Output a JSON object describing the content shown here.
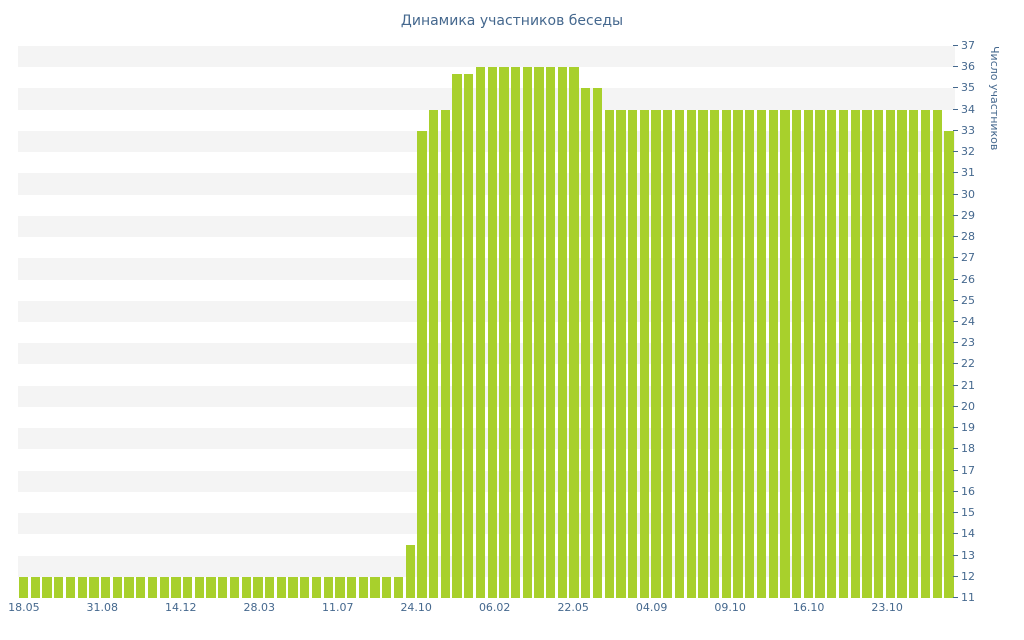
{
  "page": {
    "title": "Динамика участников беседы"
  },
  "chart_data": {
    "type": "bar",
    "title": "Динамика участников беседы",
    "xlabel": "",
    "ylabel": "Число участников",
    "ylim": [
      11,
      37
    ],
    "y_tick_step": 1,
    "grid": "horizontal-stripes",
    "legend": "none",
    "bar_color": "#a8d02c",
    "stripe_color": "#f4f4f4",
    "axis_text_color": "#45688e",
    "x_tick_labels": [
      "18.05",
      "31.08",
      "14.12",
      "28.03",
      "11.07",
      "24.10",
      "06.02",
      "22.05",
      "04.09",
      "09.10",
      "16.10",
      "23.10"
    ],
    "x_tick_bar_index": [
      0,
      6.7,
      13.4,
      20.1,
      26.8,
      33.5,
      40.2,
      46.9,
      53.6,
      60.3,
      67.0,
      73.7
    ],
    "values": [
      12,
      12,
      12,
      12,
      12,
      12,
      12,
      12,
      12,
      12,
      12,
      12,
      12,
      12,
      12,
      12,
      12,
      12,
      12,
      12,
      12,
      12,
      12,
      12,
      12,
      12,
      12,
      12,
      12,
      12,
      12,
      12,
      12,
      13.5,
      33,
      34,
      34,
      35.7,
      35.7,
      36,
      36,
      36,
      36,
      36,
      36,
      36,
      36,
      36,
      35,
      35,
      34,
      34,
      34,
      34,
      34,
      34,
      34,
      34,
      34,
      34,
      34,
      34,
      34,
      34,
      34,
      34,
      34,
      34,
      34,
      34,
      34,
      34,
      34,
      34,
      34,
      34,
      34,
      34,
      34,
      33
    ]
  }
}
